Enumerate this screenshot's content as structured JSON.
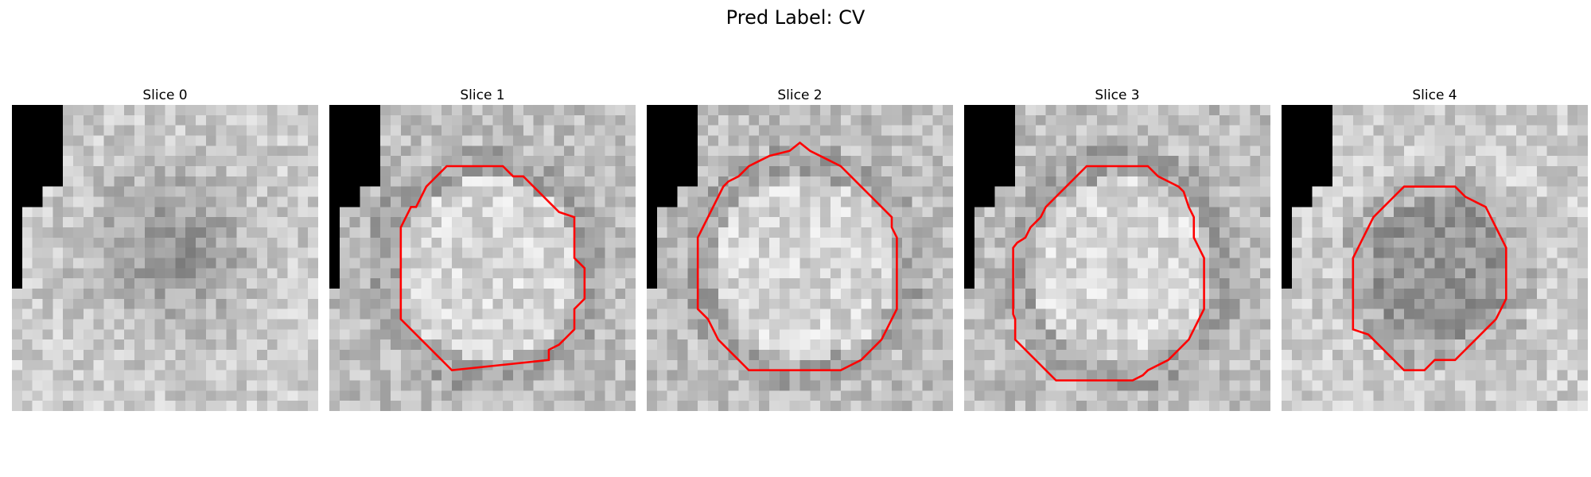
{
  "figure": {
    "title": "Pred Label: CV",
    "grid_size": 30,
    "contour_color": "#ff0000",
    "panels": [
      {
        "title": "Slice 0",
        "seed": 11,
        "mode": "none"
      },
      {
        "title": "Slice 1",
        "seed": 23,
        "mode": "ring-dark"
      },
      {
        "title": "Slice 2",
        "seed": 37,
        "mode": "ring-dark"
      },
      {
        "title": "Slice 3",
        "seed": 41,
        "mode": "ring-dark"
      },
      {
        "title": "Slice 4",
        "seed": 53,
        "mode": "blob-dark"
      }
    ]
  }
}
